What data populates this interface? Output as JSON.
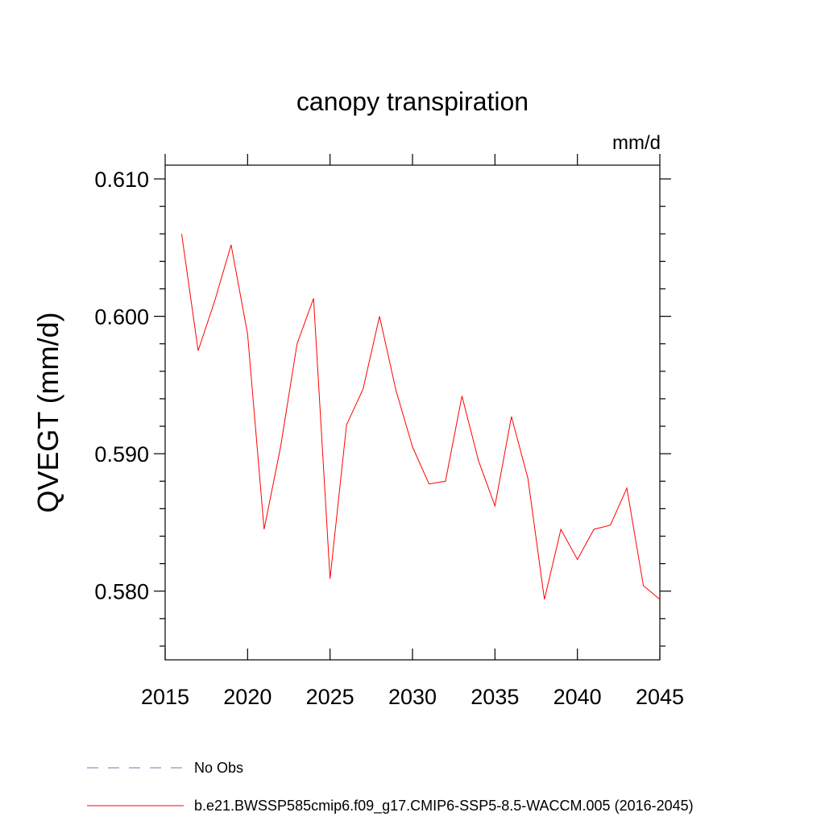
{
  "chart_data": {
    "type": "line",
    "title": "canopy transpiration",
    "units": "mm/d",
    "ylabel": "QVEGT  (mm/d)",
    "xlabel": "",
    "xlim": [
      2015,
      2045
    ],
    "ylim": [
      0.575,
      0.611
    ],
    "x_major_ticks": [
      2015,
      2020,
      2025,
      2030,
      2035,
      2040,
      2045
    ],
    "x_tick_labels": [
      "2015",
      "2020",
      "2025",
      "2030",
      "2035",
      "2040",
      "2045"
    ],
    "y_major_ticks": [
      0.58,
      0.59,
      0.6,
      0.61
    ],
    "y_tick_labels": [
      "0.580",
      "0.590",
      "0.600",
      "0.610"
    ],
    "grid": false,
    "legend_position": "bottom",
    "legend": [
      {
        "label": "No Obs",
        "color": "#8070b0",
        "style": "dashed"
      },
      {
        "label": "b.e21.BWSSP585cmip6.f09_g17.CMIP6-SSP5-8.5-WACCM.005 (2016-2045)",
        "color": "#ff0000",
        "style": "solid"
      }
    ],
    "series": [
      {
        "color": "#ff0000",
        "x": [
          2016,
          2017,
          2018,
          2019,
          2020,
          2021,
          2022,
          2023,
          2024,
          2025,
          2026,
          2027,
          2028,
          2029,
          2030,
          2031,
          2032,
          2033,
          2034,
          2035,
          2036,
          2037,
          2038,
          2039,
          2040,
          2041,
          2042,
          2043,
          2044,
          2045
        ],
        "values": [
          0.606,
          0.5975,
          0.6011,
          0.6052,
          0.5987,
          0.5845,
          0.5905,
          0.598,
          0.6013,
          0.5809,
          0.5921,
          0.5947,
          0.6,
          0.5946,
          0.5905,
          0.5878,
          0.588,
          0.5942,
          0.5895,
          0.5862,
          0.5927,
          0.5882,
          0.5794,
          0.5845,
          0.5823,
          0.5845,
          0.5848,
          0.5875,
          0.5804,
          0.5794
        ]
      }
    ]
  }
}
